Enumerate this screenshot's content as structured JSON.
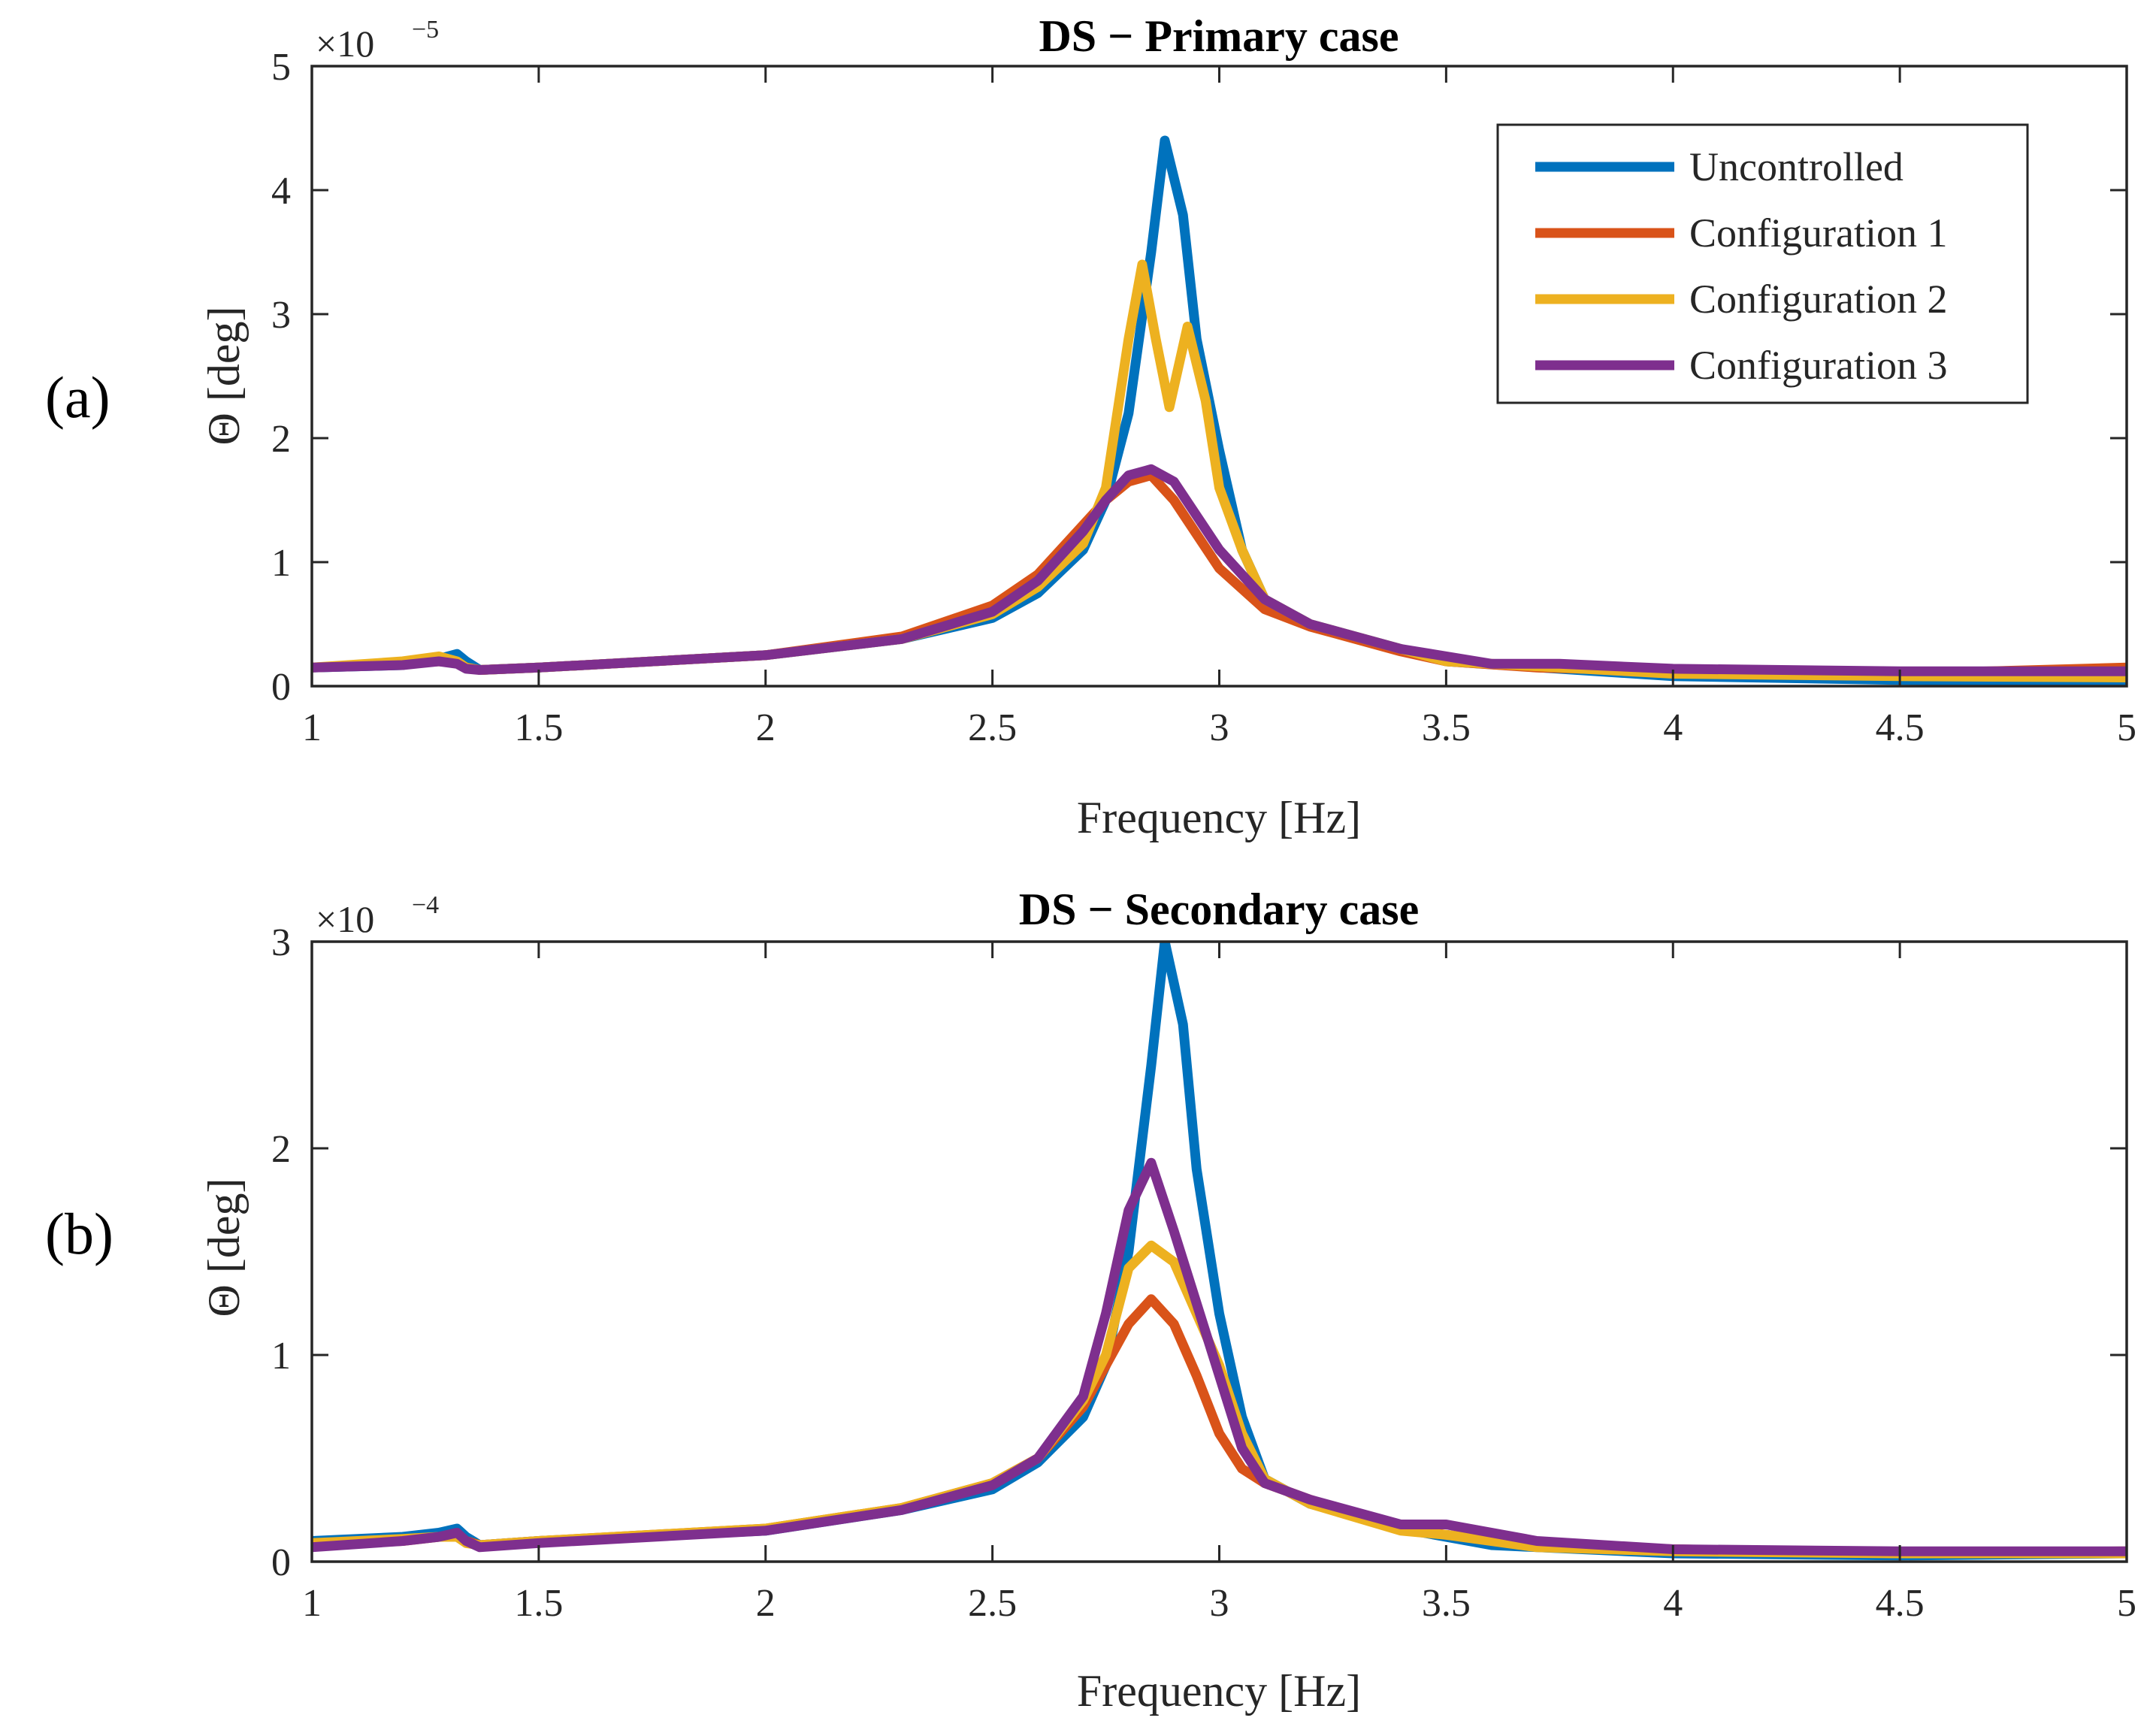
{
  "colors": {
    "Uncontrolled": "#0072BD",
    "Configuration 1": "#D95319",
    "Configuration 2": "#EDB120",
    "Configuration 3": "#7E2F8E"
  },
  "chart_data": [
    {
      "type": "line",
      "panel_label": "(a)",
      "title": "DS − Primary case",
      "xlabel": "Frequency [Hz]",
      "ylabel": "Θ [deg]",
      "exponent_base": "×10",
      "exponent_power": "−5",
      "xlim": [
        1,
        5
      ],
      "ylim": [
        0,
        5
      ],
      "xticks": [
        1,
        1.5,
        2,
        2.5,
        3,
        3.5,
        4,
        4.5,
        5
      ],
      "xtick_labels": [
        "1",
        "1.5",
        "2",
        "2.5",
        "3",
        "3.5",
        "4",
        "4.5",
        "5"
      ],
      "yticks": [
        0,
        1,
        2,
        3,
        4,
        5
      ],
      "ytick_labels": [
        "0",
        "1",
        "2",
        "3",
        "4",
        "5"
      ],
      "legend": {
        "position": "top-right",
        "entries": [
          "Uncontrolled",
          "Configuration 1",
          "Configuration 2",
          "Configuration 3"
        ]
      },
      "series": [
        {
          "name": "Uncontrolled",
          "x": [
            1.0,
            1.2,
            1.28,
            1.32,
            1.34,
            1.37,
            1.5,
            2.0,
            2.3,
            2.5,
            2.6,
            2.7,
            2.75,
            2.8,
            2.85,
            2.88,
            2.92,
            2.95,
            3.0,
            3.05,
            3.1,
            3.2,
            3.5,
            4.0,
            4.5,
            5.0
          ],
          "y": [
            0.15,
            0.17,
            0.22,
            0.26,
            0.2,
            0.13,
            0.15,
            0.25,
            0.38,
            0.55,
            0.75,
            1.1,
            1.5,
            2.2,
            3.5,
            4.4,
            3.8,
            2.8,
            1.9,
            1.1,
            0.7,
            0.5,
            0.2,
            0.08,
            0.05,
            0.04
          ]
        },
        {
          "name": "Configuration 1",
          "x": [
            1.0,
            1.2,
            1.28,
            1.32,
            1.34,
            1.37,
            1.5,
            2.0,
            2.3,
            2.5,
            2.6,
            2.7,
            2.75,
            2.8,
            2.85,
            2.9,
            3.0,
            3.1,
            3.2,
            3.4,
            3.5,
            3.7,
            4.0,
            4.5,
            5.0
          ],
          "y": [
            0.15,
            0.18,
            0.2,
            0.19,
            0.15,
            0.13,
            0.15,
            0.25,
            0.4,
            0.65,
            0.9,
            1.3,
            1.5,
            1.65,
            1.7,
            1.5,
            0.95,
            0.62,
            0.48,
            0.28,
            0.2,
            0.15,
            0.12,
            0.1,
            0.15
          ]
        },
        {
          "name": "Configuration 2",
          "x": [
            1.0,
            1.2,
            1.28,
            1.32,
            1.34,
            1.37,
            1.5,
            2.0,
            2.3,
            2.5,
            2.6,
            2.7,
            2.75,
            2.8,
            2.83,
            2.86,
            2.89,
            2.93,
            2.97,
            3.0,
            3.05,
            3.1,
            3.2,
            3.5,
            4.0,
            4.5,
            5.0
          ],
          "y": [
            0.15,
            0.2,
            0.24,
            0.2,
            0.15,
            0.13,
            0.15,
            0.25,
            0.38,
            0.58,
            0.8,
            1.15,
            1.6,
            2.8,
            3.4,
            2.8,
            2.25,
            2.9,
            2.3,
            1.6,
            1.1,
            0.7,
            0.5,
            0.2,
            0.1,
            0.08,
            0.07
          ]
        },
        {
          "name": "Configuration 3",
          "x": [
            1.0,
            1.2,
            1.28,
            1.32,
            1.34,
            1.37,
            1.5,
            2.0,
            2.3,
            2.5,
            2.6,
            2.7,
            2.75,
            2.8,
            2.85,
            2.9,
            3.0,
            3.1,
            3.2,
            3.4,
            3.6,
            3.75,
            4.0,
            4.5,
            5.0
          ],
          "y": [
            0.15,
            0.17,
            0.2,
            0.18,
            0.14,
            0.13,
            0.15,
            0.25,
            0.38,
            0.6,
            0.85,
            1.25,
            1.5,
            1.7,
            1.75,
            1.65,
            1.1,
            0.7,
            0.5,
            0.3,
            0.18,
            0.18,
            0.14,
            0.12,
            0.12
          ]
        }
      ]
    },
    {
      "type": "line",
      "panel_label": "(b)",
      "title": "DS − Secondary case",
      "xlabel": "Frequency [Hz]",
      "ylabel": "Θ [deg]",
      "exponent_base": "×10",
      "exponent_power": "−4",
      "xlim": [
        1,
        5
      ],
      "ylim": [
        0,
        3
      ],
      "xticks": [
        1,
        1.5,
        2,
        2.5,
        3,
        3.5,
        4,
        4.5,
        5
      ],
      "xtick_labels": [
        "1",
        "1.5",
        "2",
        "2.5",
        "3",
        "3.5",
        "4",
        "4.5",
        "5"
      ],
      "yticks": [
        0,
        1,
        2,
        3
      ],
      "ytick_labels": [
        "0",
        "1",
        "2",
        "3"
      ],
      "legend": {
        "position": "none",
        "entries": []
      },
      "series": [
        {
          "name": "Uncontrolled",
          "x": [
            1.0,
            1.2,
            1.28,
            1.32,
            1.34,
            1.37,
            1.5,
            2.0,
            2.3,
            2.5,
            2.6,
            2.7,
            2.75,
            2.8,
            2.85,
            2.88,
            2.92,
            2.95,
            3.0,
            3.05,
            3.1,
            3.2,
            3.4,
            3.6,
            4.0,
            4.5,
            5.0
          ],
          "y": [
            0.1,
            0.12,
            0.14,
            0.16,
            0.12,
            0.08,
            0.1,
            0.15,
            0.25,
            0.35,
            0.48,
            0.7,
            0.95,
            1.5,
            2.4,
            3.0,
            2.6,
            1.9,
            1.2,
            0.7,
            0.4,
            0.28,
            0.16,
            0.08,
            0.04,
            0.03,
            0.04
          ]
        },
        {
          "name": "Configuration 1",
          "x": [
            1.0,
            1.2,
            1.28,
            1.32,
            1.34,
            1.37,
            1.5,
            2.0,
            2.3,
            2.5,
            2.6,
            2.7,
            2.75,
            2.8,
            2.85,
            2.9,
            2.95,
            3.0,
            3.05,
            3.1,
            3.2,
            3.4,
            3.5,
            3.7,
            4.0,
            4.5,
            5.0
          ],
          "y": [
            0.08,
            0.1,
            0.12,
            0.13,
            0.1,
            0.08,
            0.1,
            0.16,
            0.26,
            0.38,
            0.5,
            0.75,
            0.95,
            1.15,
            1.27,
            1.15,
            0.9,
            0.62,
            0.45,
            0.38,
            0.3,
            0.16,
            0.13,
            0.08,
            0.06,
            0.04,
            0.05
          ]
        },
        {
          "name": "Configuration 2",
          "x": [
            1.0,
            1.2,
            1.28,
            1.32,
            1.34,
            1.37,
            1.5,
            2.0,
            2.3,
            2.5,
            2.6,
            2.7,
            2.75,
            2.8,
            2.85,
            2.9,
            2.95,
            3.0,
            3.05,
            3.1,
            3.2,
            3.4,
            3.5,
            3.7,
            4.0,
            4.5,
            5.0
          ],
          "y": [
            0.09,
            0.11,
            0.12,
            0.12,
            0.09,
            0.08,
            0.1,
            0.16,
            0.26,
            0.38,
            0.5,
            0.78,
            1.0,
            1.42,
            1.53,
            1.45,
            1.2,
            0.95,
            0.62,
            0.4,
            0.28,
            0.15,
            0.13,
            0.07,
            0.05,
            0.04,
            0.04
          ]
        },
        {
          "name": "Configuration 3",
          "x": [
            1.0,
            1.2,
            1.28,
            1.32,
            1.34,
            1.37,
            1.5,
            2.0,
            2.3,
            2.5,
            2.6,
            2.7,
            2.75,
            2.8,
            2.85,
            2.9,
            2.95,
            3.0,
            3.05,
            3.1,
            3.2,
            3.4,
            3.5,
            3.7,
            4.0,
            4.5,
            5.0
          ],
          "y": [
            0.07,
            0.1,
            0.12,
            0.14,
            0.1,
            0.07,
            0.09,
            0.15,
            0.25,
            0.37,
            0.5,
            0.8,
            1.2,
            1.7,
            1.93,
            1.6,
            1.25,
            0.9,
            0.55,
            0.38,
            0.3,
            0.18,
            0.18,
            0.1,
            0.06,
            0.05,
            0.05
          ]
        }
      ]
    }
  ]
}
